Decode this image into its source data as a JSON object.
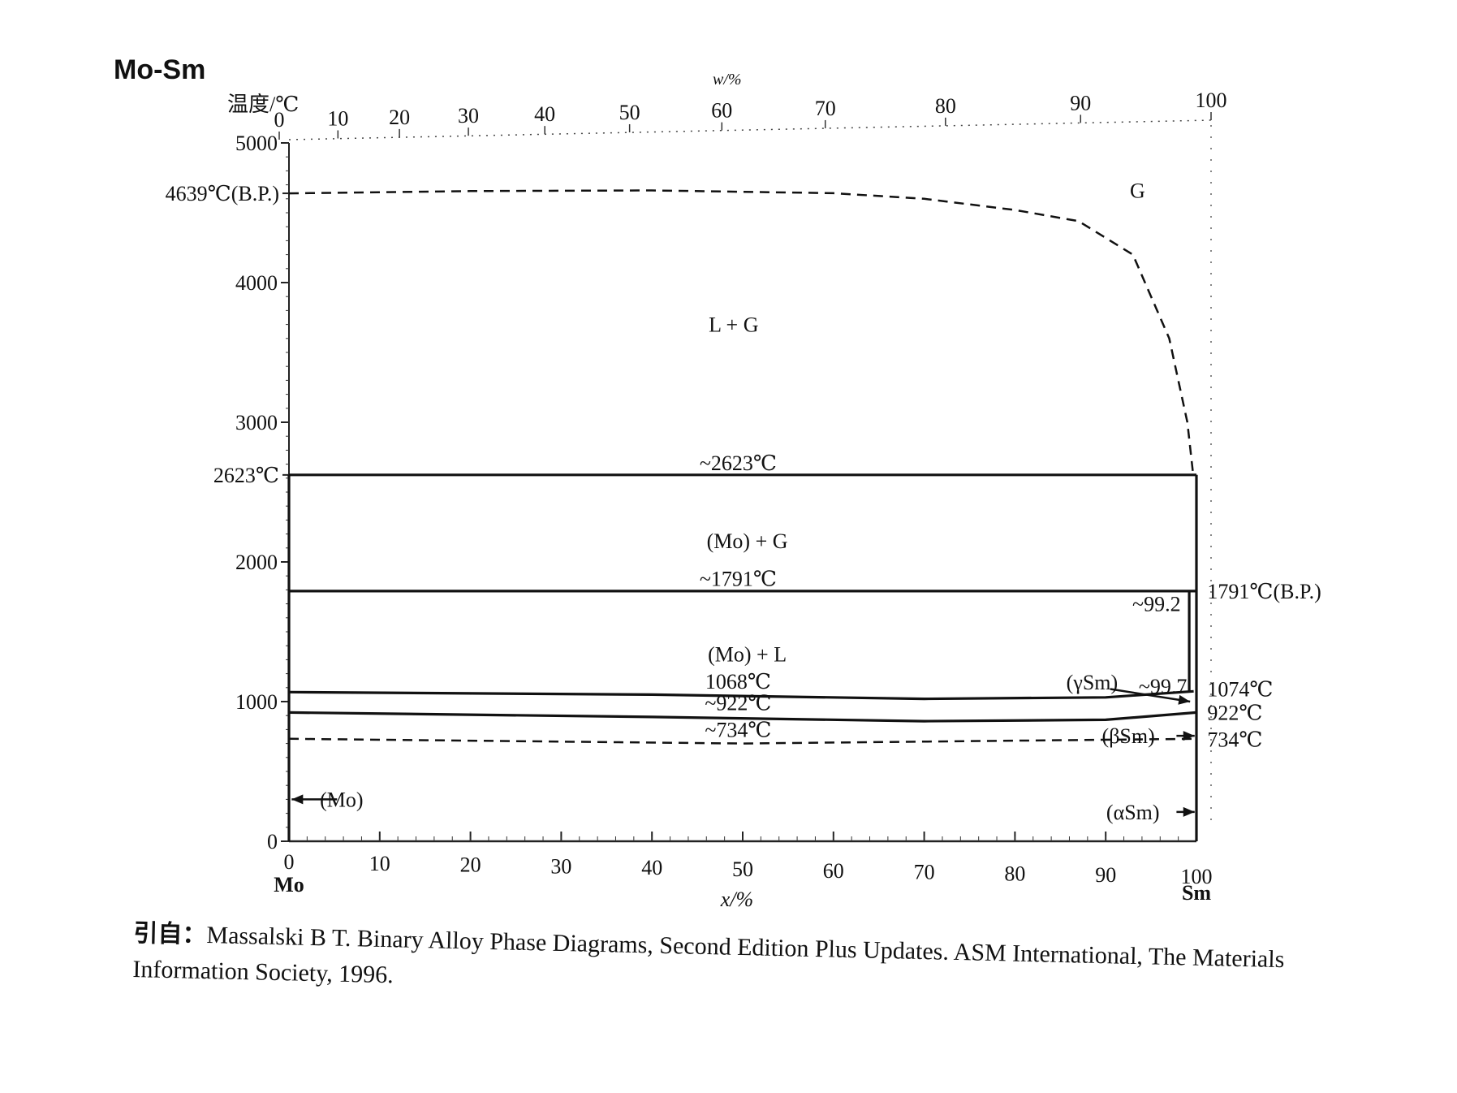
{
  "chart_data": {
    "type": "line",
    "title": "Mo-Sm",
    "ylabel": "温度/℃",
    "xlabel": "x/%",
    "top_xlabel": "w/%",
    "ylim": [
      0,
      5000
    ],
    "xlim": [
      0,
      100
    ],
    "y_ticks": [
      {
        "value": 0,
        "label": "0"
      },
      {
        "value": 1000,
        "label": "1000"
      },
      {
        "value": 2000,
        "label": "2000"
      },
      {
        "value": 3000,
        "label": "3000"
      },
      {
        "value": 4000,
        "label": "4000"
      },
      {
        "value": 5000,
        "label": "5000"
      }
    ],
    "y_special_labels": [
      {
        "value": 4639,
        "label": "4639℃(B.P.)"
      },
      {
        "value": 2623,
        "label": "2623℃"
      }
    ],
    "x_ticks": [
      {
        "value": 0,
        "label": "0"
      },
      {
        "value": 10,
        "label": "10"
      },
      {
        "value": 20,
        "label": "20"
      },
      {
        "value": 30,
        "label": "30"
      },
      {
        "value": 40,
        "label": "40"
      },
      {
        "value": 50,
        "label": "50"
      },
      {
        "value": 60,
        "label": "60"
      },
      {
        "value": 70,
        "label": "70"
      },
      {
        "value": 80,
        "label": "80"
      },
      {
        "value": 90,
        "label": "90"
      },
      {
        "value": 100,
        "label": "100"
      }
    ],
    "x_end_labels": {
      "left": "Mo",
      "right": "Sm"
    },
    "top_x_ticks": [
      {
        "x": 0,
        "label": "0"
      },
      {
        "x": 6.3,
        "label": "10"
      },
      {
        "x": 12.9,
        "label": "20"
      },
      {
        "x": 20.3,
        "label": "30"
      },
      {
        "x": 28.5,
        "label": "40"
      },
      {
        "x": 37.6,
        "label": "50"
      },
      {
        "x": 47.5,
        "label": "60"
      },
      {
        "x": 58.6,
        "label": "70"
      },
      {
        "x": 71.5,
        "label": "80"
      },
      {
        "x": 86.0,
        "label": "90"
      },
      {
        "x": 100,
        "label": "100"
      }
    ],
    "series": [
      {
        "style": "dashed",
        "points": [
          [
            0,
            4639
          ],
          [
            20,
            4655
          ],
          [
            40,
            4660
          ],
          [
            60,
            4640
          ],
          [
            70,
            4600
          ],
          [
            80,
            4520
          ],
          [
            87,
            4440
          ],
          [
            93,
            4200
          ],
          [
            97,
            3600
          ],
          [
            99,
            3000
          ],
          [
            99.6,
            2650
          ]
        ]
      },
      {
        "style": "solid",
        "points": [
          [
            0,
            2623
          ],
          [
            100,
            2623
          ]
        ]
      },
      {
        "style": "solid",
        "points": [
          [
            0,
            1791
          ],
          [
            100,
            1791
          ]
        ]
      },
      {
        "style": "solid",
        "points": [
          [
            0,
            1068
          ],
          [
            40,
            1050
          ],
          [
            70,
            1020
          ],
          [
            90,
            1030
          ],
          [
            99.7,
            1074
          ]
        ]
      },
      {
        "style": "solid",
        "points": [
          [
            0,
            922
          ],
          [
            40,
            890
          ],
          [
            70,
            860
          ],
          [
            90,
            870
          ],
          [
            100,
            922
          ]
        ]
      },
      {
        "style": "dashed",
        "points": [
          [
            0,
            734
          ],
          [
            50,
            700
          ],
          [
            100,
            734
          ]
        ]
      },
      {
        "style": "solid",
        "points": [
          [
            0,
            0
          ],
          [
            0,
            2623
          ]
        ]
      },
      {
        "style": "solid",
        "points": [
          [
            100,
            0
          ],
          [
            100,
            2623
          ]
        ]
      },
      {
        "style": "solid",
        "points": [
          [
            99.2,
            1074
          ],
          [
            99.2,
            1791
          ]
        ]
      }
    ],
    "annotations": [
      {
        "text": "G",
        "x": 93.5,
        "y": 4660
      },
      {
        "text": "L + G",
        "x": 49,
        "y": 3700
      },
      {
        "text": "~2623℃",
        "x": 49.5,
        "y": 2710
      },
      {
        "text": "(Mo) + G",
        "x": 50.5,
        "y": 2150
      },
      {
        "text": "~1791℃",
        "x": 49.5,
        "y": 1880
      },
      {
        "text": "(Mo) + L",
        "x": 50.5,
        "y": 1340
      },
      {
        "text": "1068℃",
        "x": 49.5,
        "y": 1145
      },
      {
        "text": "~922℃",
        "x": 49.5,
        "y": 990
      },
      {
        "text": "~734℃",
        "x": 49.5,
        "y": 800
      },
      {
        "text": "~99.2",
        "x": 95.6,
        "y": 1700
      },
      {
        "text": "~99.7",
        "x": 96.3,
        "y": 1110
      },
      {
        "text": "(γSm)",
        "x": 88.5,
        "y": 1140
      },
      {
        "text": "(βSm)",
        "x": 92.5,
        "y": 755
      },
      {
        "text": "(αSm)",
        "x": 93,
        "y": 210
      },
      {
        "text": "(Mo)",
        "x": 5.8,
        "y": 300
      },
      {
        "text": "1791℃(B.P.)",
        "x": 101.2,
        "y": 1791
      },
      {
        "text": "1074℃",
        "x": 101.2,
        "y": 1090
      },
      {
        "text": "922℃",
        "x": 101.2,
        "y": 922
      },
      {
        "text": "734℃",
        "x": 101.2,
        "y": 730
      }
    ],
    "grid": false
  },
  "citation": {
    "lead": "引自：",
    "text": "Massalski B T. Binary Alloy Phase Diagrams, Second Edition Plus Updates. ASM International, The Materials Information Society, 1996."
  }
}
